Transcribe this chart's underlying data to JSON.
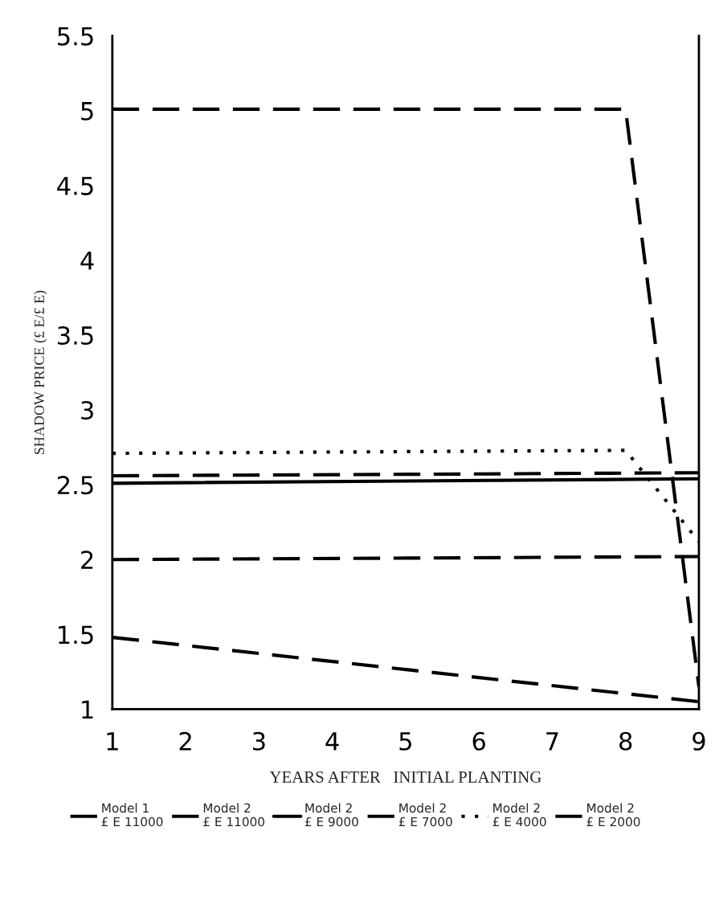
{
  "chart_data": {
    "type": "line",
    "xlabel": "YEARS AFTER   INITIAL PLANTING",
    "ylabel": "SHADOW PRICE (£ E/£ E)",
    "xlim": [
      1,
      9
    ],
    "xticks": [
      1,
      2,
      3,
      4,
      5,
      6,
      7,
      8,
      9
    ],
    "ylim": [
      1,
      5.5
    ],
    "yticks": [
      1,
      1.5,
      2,
      2.5,
      3,
      3.5,
      4,
      4.5,
      5,
      5.5
    ],
    "grid": false,
    "legend": "bottom",
    "marker": "none",
    "series": [
      {
        "name": "Model 1\n£ E 11000",
        "color": "#000000",
        "line_style": "dashed",
        "x": [
          1,
          9
        ],
        "values": [
          1.48,
          1.05
        ]
      },
      {
        "name": "Model 2\n£ E 11000",
        "color": "#000000",
        "line_style": "dashed",
        "x": [
          1,
          8,
          9
        ],
        "values": [
          5.01,
          5.01,
          1.15
        ]
      },
      {
        "name": "Model 2\n£ E 9000",
        "color": "#000000",
        "line_style": "solid",
        "x": [
          1,
          9
        ],
        "values": [
          2.51,
          2.54
        ]
      },
      {
        "name": "Model 2\n£ E 7000",
        "color": "#000000",
        "line_style": "dashed",
        "x": [
          1,
          9
        ],
        "values": [
          2.56,
          2.58
        ]
      },
      {
        "name": "Model 2\n£ E 4000",
        "color": "#000000",
        "line_style": "dotted",
        "x": [
          1,
          8,
          9
        ],
        "values": [
          2.71,
          2.73,
          2.12
        ]
      },
      {
        "name": "Model 2\n£ E 2000",
        "color": "#000000",
        "line_style": "dashed",
        "x": [
          1,
          9
        ],
        "values": [
          2.0,
          2.02
        ]
      }
    ]
  }
}
